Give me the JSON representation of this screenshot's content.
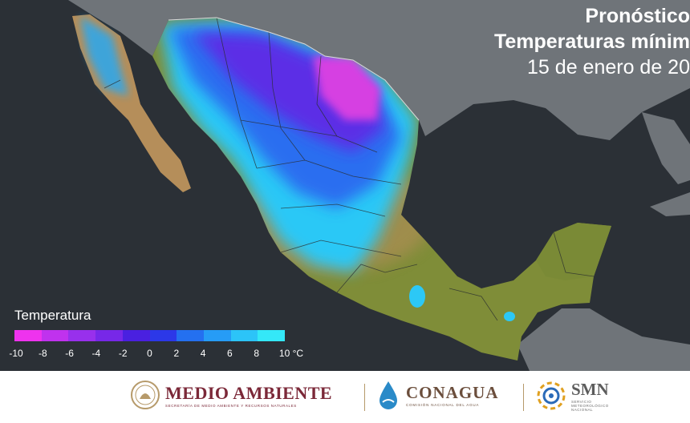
{
  "title": {
    "line1": "Pronóstico",
    "line2": "Temperaturas mínim",
    "line3": "15 de enero de 20"
  },
  "legend": {
    "title": "Temperatura",
    "colors": [
      "#ee33ee",
      "#c032ee",
      "#9830ec",
      "#7728e8",
      "#4a20e0",
      "#2c38e8",
      "#2470f0",
      "#269cf6",
      "#2cc4f8",
      "#34e8f8"
    ],
    "ticks": [
      "-10",
      "-8",
      "-6",
      "-4",
      "-2",
      "0",
      "2",
      "4",
      "6",
      "8",
      "10 °C"
    ]
  },
  "footer": {
    "medio_ambiente": "MEDIO AMBIENTE",
    "medio_ambiente_sub": "SECRETARÍA DE MEDIO AMBIENTE Y RECURSOS NATURALES",
    "conagua": "CONAGUA",
    "conagua_sub": "COMISIÓN NACIONAL DEL AGUA",
    "smn": "SMN",
    "smn_sub1": "SERVICIO",
    "smn_sub2": "METEOROLÓGICO",
    "smn_sub3": "NACIONAL"
  },
  "colors": {
    "ocean": "#2b3036",
    "land_outside": "#6f7479",
    "warm_land": "#7f8d38",
    "mountain_land": "#b58e5a",
    "cold_magenta": "#d43fe0",
    "cold_purple": "#6a2ce8",
    "cool_blue": "#2f6ff0",
    "mild_cyan": "#2ad6f4",
    "brand_maroon": "#7b2838",
    "brand_brown": "#6b4e3c"
  }
}
